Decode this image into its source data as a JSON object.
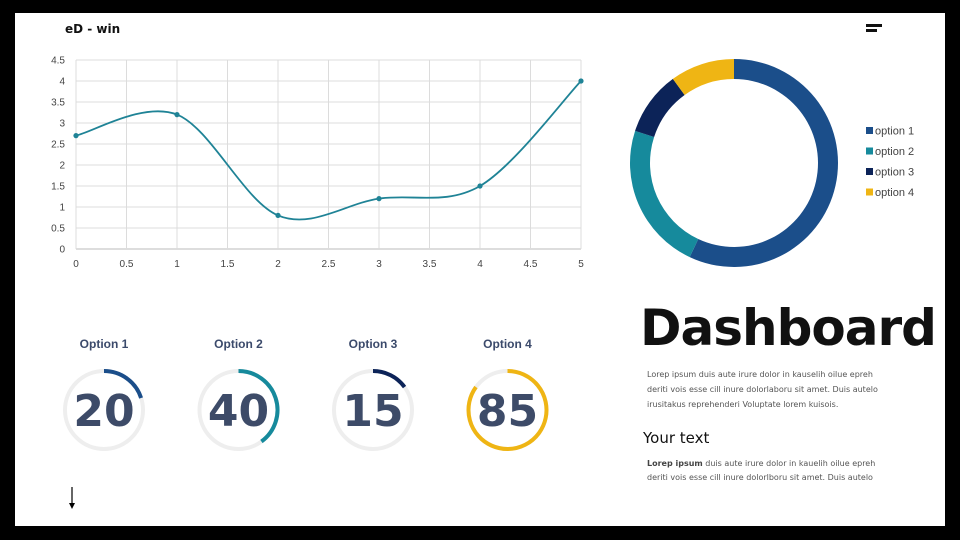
{
  "header": {
    "brand": "eD - win"
  },
  "text": {
    "heading": "Dashboard",
    "paragraph1": "Lorep  ipsum duis aute irure dolor in kauselih oilue epreh deriti vois esse cill inure dolorlaboru sit amet. Duis autelo irusitakus reprehenderi Voluptate lorem kuisois.",
    "subheading": "Your text",
    "paragraph2_bold": "Lorep  ipsum",
    "paragraph2": " duis aute irure dolor in kauelih oilue epreh deriti vois esse cill inure dolorlboru sit amet. Duis autelo"
  },
  "chart_data": [
    {
      "type": "line",
      "smooth": true,
      "x": [
        0,
        1,
        2,
        3,
        4,
        5
      ],
      "series": [
        {
          "values": [
            2.7,
            3.2,
            0.8,
            1.2,
            1.5,
            4.0
          ],
          "color": "#1f8396"
        }
      ],
      "xlim": [
        0,
        5
      ],
      "ylim": [
        0,
        4.5
      ],
      "xticks": [
        "0",
        "0.5",
        "1",
        "1.5",
        "2",
        "2.5",
        "3",
        "3.5",
        "4",
        "4.5",
        "5"
      ],
      "yticks": [
        "0",
        "0.5",
        "1",
        "1.5",
        "2",
        "2.5",
        "3",
        "3.5",
        "4",
        "4.5"
      ],
      "grid": true
    },
    {
      "type": "pie",
      "donut": true,
      "categories": [
        "option 1",
        "option 2",
        "option 3",
        "option 4"
      ],
      "values": [
        57,
        23,
        10,
        10
      ],
      "colors": [
        "#1b4e8a",
        "#168a9c",
        "#0c2358",
        "#efb514"
      ],
      "legend": "right"
    },
    {
      "type": "gauge",
      "items": [
        {
          "label": "Option 1",
          "value": 20,
          "color": "#1b4e8a"
        },
        {
          "label": "Option 2",
          "value": 40,
          "color": "#168a9c"
        },
        {
          "label": "Option 3",
          "value": 15,
          "color": "#0c2358"
        },
        {
          "label": "Option 4",
          "value": 85,
          "color": "#efb514"
        }
      ]
    }
  ]
}
